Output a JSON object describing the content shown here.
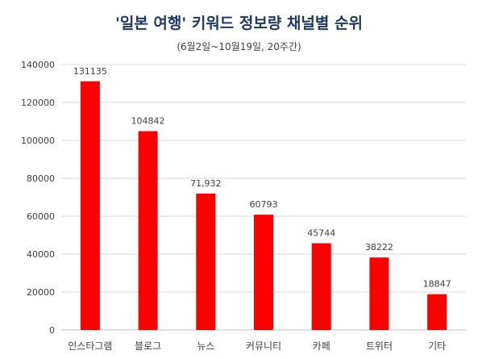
{
  "chart_data": {
    "type": "bar",
    "title": "'일본 여행' 키워드 정보량 채널별 순위",
    "subtitle": "(6월2일~10월19일, 20주간)",
    "categories": [
      "인스타그램",
      "블로그",
      "뉴스",
      "커뮤니티",
      "카페",
      "트위터",
      "기타"
    ],
    "values": [
      131135,
      104842,
      71932,
      60793,
      45744,
      38222,
      18847
    ],
    "data_labels": [
      "131135",
      "104842",
      "71,932",
      "60793",
      "45744",
      "38222",
      "18847"
    ],
    "yticks": [
      "0",
      "20000",
      "40000",
      "60000",
      "80000",
      "100000",
      "120000",
      "140000"
    ],
    "ylim": [
      0,
      140000
    ],
    "grid": true,
    "bar_color": "#ff0000"
  }
}
